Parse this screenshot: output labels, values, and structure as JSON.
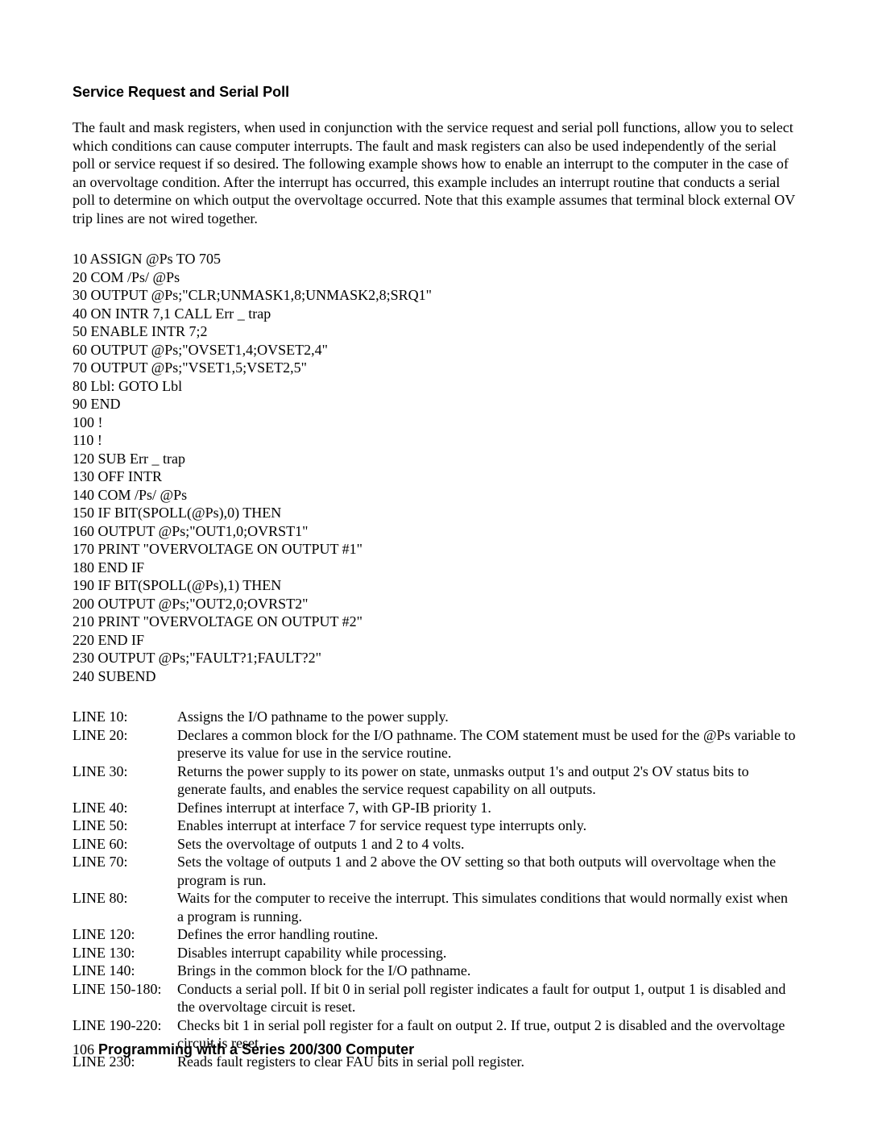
{
  "heading": "Service Request and Serial Poll",
  "intro": "The fault and mask registers, when used in conjunction with the service request and serial poll functions, allow you to select which conditions can cause computer interrupts. The fault and mask registers can also be used independently of the serial poll or service request if so desired. The following example shows how to enable an interrupt to the computer in the case of an overvoltage condition. After the interrupt has occurred, this example includes an interrupt routine that conducts a serial poll to determine on which output the overvoltage occurred. Note that this example assumes that terminal block external OV trip lines are not wired together.",
  "code": [
    "10 ASSIGN @Ps TO 705",
    "20 COM /Ps/ @Ps",
    "30 OUTPUT @Ps;\"CLR;UNMASK1,8;UNMASK2,8;SRQ1\"",
    "40 ON INTR 7,1 CALL Err _ trap",
    "50 ENABLE INTR 7;2",
    "60 OUTPUT @Ps;\"OVSET1,4;OVSET2,4\"",
    "70 OUTPUT @Ps;\"VSET1,5;VSET2,5\"",
    "80 Lbl: GOTO Lbl",
    "90 END",
    "100 !",
    "110 !",
    "120 SUB Err _ trap",
    "130 OFF INTR",
    "140 COM /Ps/ @Ps",
    "150 IF BIT(SPOLL(@Ps),0) THEN",
    "160 OUTPUT @Ps;\"OUT1,0;OVRST1\"",
    "170 PRINT \"OVERVOLTAGE ON OUTPUT #1\"",
    "180 END IF",
    "190 IF BIT(SPOLL(@Ps),1) THEN",
    "200 OUTPUT @Ps;\"OUT2,0;OVRST2\"",
    "210 PRINT \"OVERVOLTAGE ON OUTPUT #2\"",
    "220 END IF",
    "230 OUTPUT @Ps;\"FAULT?1;FAULT?2\"",
    "240 SUBEND"
  ],
  "descriptions": [
    {
      "label": "LINE 10:",
      "text": "Assigns the I/O pathname to the power supply."
    },
    {
      "label": "LINE 20:",
      "text": "Declares a common block for the I/O pathname. The COM statement must be used for the @Ps variable to preserve its value for use in the service routine."
    },
    {
      "label": "LINE 30:",
      "text": "Returns the power supply to its power on state, unmasks output 1's and output 2's OV status bits to generate faults, and enables the service request capability on all outputs."
    },
    {
      "label": "LINE 40:",
      "text": "Defines interrupt at interface 7, with GP-IB priority 1."
    },
    {
      "label": "LINE 50:",
      "text": "Enables interrupt at interface 7 for service request type interrupts only."
    },
    {
      "label": "LINE 60:",
      "text": "Sets the overvoltage of outputs 1 and 2 to 4 volts."
    },
    {
      "label": "LINE 70:",
      "text": "Sets the voltage of outputs 1 and 2 above the OV setting so that both outputs will overvoltage when the program is run."
    },
    {
      "label": "LINE 80:",
      "text": "Waits for the computer to receive the interrupt. This simulates conditions that would normally exist when a program is running."
    },
    {
      "label": "LINE 120:",
      "text": "Defines the error handling routine."
    },
    {
      "label": "LINE 130:",
      "text": "Disables interrupt capability while processing."
    },
    {
      "label": "LINE 140:",
      "text": "Brings in the common block for the I/O pathname."
    },
    {
      "label": "LINE 150-180:",
      "text": "Conducts a serial poll. If bit 0 in serial poll register indicates a fault for output 1, output 1 is disabled and the overvoltage circuit is reset."
    },
    {
      "label": "LINE 190-220:",
      "text": "Checks bit 1 in serial poll register for a fault on output 2. If true, output 2 is disabled and the overvoltage circuit is reset."
    },
    {
      "label": " LINE 230:",
      "text": "Reads fault registers to clear FAU bits in serial poll register."
    }
  ],
  "footer": {
    "pagenum": "106",
    "title": "  Programming with a Series 200/300 Computer"
  }
}
